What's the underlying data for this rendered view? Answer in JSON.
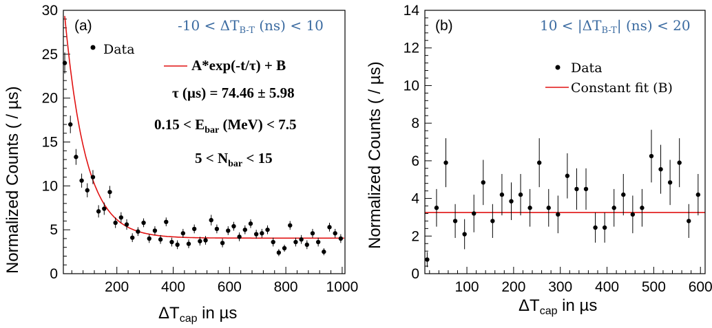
{
  "colors": {
    "fit": "#e01010",
    "condition": "#3a6aa0",
    "data": "#000000"
  },
  "chart_data": [
    {
      "type": "scatter",
      "panel_label": "(a)",
      "condition_prefix": "-10 < ΔT",
      "condition_sub": "B-T",
      "condition_suffix": " (ns) < 10",
      "ylabel": "Normalized Counts ( / µs)",
      "xlabel_main": "ΔT",
      "xlabel_sub": "cap",
      "xlabel_suffix": " in µs",
      "xlim": [
        10,
        1010
      ],
      "ylim": [
        0,
        30
      ],
      "xticks": [
        200,
        400,
        600,
        800,
        1000
      ],
      "yticks": [
        0,
        5,
        10,
        15,
        20,
        25,
        30
      ],
      "legend_data": "Data",
      "legend_fit": "A*exp(-t/τ) + B",
      "fit_result": "τ (µs) = 74.46  ± 5.98",
      "energy_prefix": "0.15 < E",
      "energy_sub": "bar",
      "energy_suffix": " (MeV) < 7.5",
      "nbar_prefix": "5 < N",
      "nbar_sub": "bar",
      "nbar_suffix": " < 15",
      "fit": {
        "A": 25.3,
        "tau": 74.46,
        "B": 4.05,
        "x_start": 15
      },
      "points": [
        {
          "x": 15,
          "y": 24.0,
          "e": 1.2
        },
        {
          "x": 35,
          "y": 17.0,
          "e": 1.0
        },
        {
          "x": 55,
          "y": 13.3,
          "e": 0.9
        },
        {
          "x": 75,
          "y": 10.6,
          "e": 0.8
        },
        {
          "x": 95,
          "y": 9.5,
          "e": 0.8
        },
        {
          "x": 115,
          "y": 11.0,
          "e": 0.8
        },
        {
          "x": 135,
          "y": 7.1,
          "e": 0.7
        },
        {
          "x": 155,
          "y": 7.4,
          "e": 0.7
        },
        {
          "x": 175,
          "y": 9.3,
          "e": 0.7
        },
        {
          "x": 195,
          "y": 5.8,
          "e": 0.6
        },
        {
          "x": 215,
          "y": 6.4,
          "e": 0.6
        },
        {
          "x": 235,
          "y": 5.6,
          "e": 0.6
        },
        {
          "x": 255,
          "y": 4.1,
          "e": 0.5
        },
        {
          "x": 275,
          "y": 4.8,
          "e": 0.5
        },
        {
          "x": 295,
          "y": 5.8,
          "e": 0.5
        },
        {
          "x": 315,
          "y": 4.0,
          "e": 0.5
        },
        {
          "x": 335,
          "y": 4.9,
          "e": 0.5
        },
        {
          "x": 355,
          "y": 3.9,
          "e": 0.5
        },
        {
          "x": 375,
          "y": 5.9,
          "e": 0.5
        },
        {
          "x": 395,
          "y": 3.6,
          "e": 0.5
        },
        {
          "x": 415,
          "y": 3.3,
          "e": 0.5
        },
        {
          "x": 435,
          "y": 4.6,
          "e": 0.5
        },
        {
          "x": 455,
          "y": 3.4,
          "e": 0.5
        },
        {
          "x": 475,
          "y": 5.1,
          "e": 0.5
        },
        {
          "x": 495,
          "y": 3.7,
          "e": 0.5
        },
        {
          "x": 515,
          "y": 3.8,
          "e": 0.5
        },
        {
          "x": 535,
          "y": 6.1,
          "e": 0.6
        },
        {
          "x": 555,
          "y": 5.1,
          "e": 0.5
        },
        {
          "x": 575,
          "y": 3.5,
          "e": 0.5
        },
        {
          "x": 595,
          "y": 4.9,
          "e": 0.5
        },
        {
          "x": 615,
          "y": 5.4,
          "e": 0.5
        },
        {
          "x": 635,
          "y": 4.2,
          "e": 0.5
        },
        {
          "x": 655,
          "y": 5.0,
          "e": 0.5
        },
        {
          "x": 675,
          "y": 5.7,
          "e": 0.5
        },
        {
          "x": 695,
          "y": 4.5,
          "e": 0.5
        },
        {
          "x": 715,
          "y": 4.6,
          "e": 0.5
        },
        {
          "x": 735,
          "y": 5.0,
          "e": 0.5
        },
        {
          "x": 755,
          "y": 3.6,
          "e": 0.5
        },
        {
          "x": 775,
          "y": 2.4,
          "e": 0.4
        },
        {
          "x": 795,
          "y": 2.9,
          "e": 0.4
        },
        {
          "x": 815,
          "y": 5.5,
          "e": 0.5
        },
        {
          "x": 835,
          "y": 3.6,
          "e": 0.5
        },
        {
          "x": 855,
          "y": 3.9,
          "e": 0.5
        },
        {
          "x": 875,
          "y": 3.3,
          "e": 0.5
        },
        {
          "x": 895,
          "y": 4.6,
          "e": 0.5
        },
        {
          "x": 915,
          "y": 3.6,
          "e": 0.5
        },
        {
          "x": 935,
          "y": 2.5,
          "e": 0.4
        },
        {
          "x": 955,
          "y": 5.3,
          "e": 0.5
        },
        {
          "x": 975,
          "y": 4.6,
          "e": 0.5
        },
        {
          "x": 995,
          "y": 4.0,
          "e": 0.5
        }
      ]
    },
    {
      "type": "scatter",
      "panel_label": "(b)",
      "condition_prefix": "10 < |ΔT",
      "condition_sub": "B-T",
      "condition_suffix": "| (ns) < 20",
      "ylabel": "Normalized Counts ( / µs)",
      "xlabel_main": "ΔT",
      "xlabel_sub": "cap",
      "xlabel_suffix": " in µs",
      "xlim": [
        10,
        610
      ],
      "ylim": [
        0,
        14
      ],
      "xticks": [
        100,
        200,
        300,
        400,
        500,
        600
      ],
      "yticks": [
        0,
        2,
        4,
        6,
        8,
        10,
        12,
        14
      ],
      "legend_data": "Data",
      "legend_fit": "Constant fit (B)",
      "fit": {
        "B": 3.25
      },
      "points": [
        {
          "x": 15,
          "y": 0.75,
          "e": 0.4
        },
        {
          "x": 35,
          "y": 3.5,
          "e": 1.0
        },
        {
          "x": 55,
          "y": 5.9,
          "e": 1.3
        },
        {
          "x": 75,
          "y": 2.8,
          "e": 0.9
        },
        {
          "x": 95,
          "y": 2.1,
          "e": 0.8
        },
        {
          "x": 115,
          "y": 3.2,
          "e": 1.0
        },
        {
          "x": 135,
          "y": 4.85,
          "e": 1.2
        },
        {
          "x": 155,
          "y": 2.8,
          "e": 0.9
        },
        {
          "x": 175,
          "y": 4.2,
          "e": 1.1
        },
        {
          "x": 195,
          "y": 3.85,
          "e": 1.0
        },
        {
          "x": 215,
          "y": 4.2,
          "e": 1.1
        },
        {
          "x": 235,
          "y": 3.5,
          "e": 1.0
        },
        {
          "x": 255,
          "y": 5.9,
          "e": 1.3
        },
        {
          "x": 275,
          "y": 3.5,
          "e": 1.0
        },
        {
          "x": 295,
          "y": 3.15,
          "e": 1.0
        },
        {
          "x": 315,
          "y": 5.2,
          "e": 1.2
        },
        {
          "x": 335,
          "y": 4.5,
          "e": 1.1
        },
        {
          "x": 355,
          "y": 4.5,
          "e": 1.1
        },
        {
          "x": 375,
          "y": 2.45,
          "e": 0.8
        },
        {
          "x": 395,
          "y": 2.45,
          "e": 0.8
        },
        {
          "x": 415,
          "y": 3.5,
          "e": 1.0
        },
        {
          "x": 435,
          "y": 4.2,
          "e": 1.1
        },
        {
          "x": 455,
          "y": 3.15,
          "e": 1.0
        },
        {
          "x": 475,
          "y": 3.5,
          "e": 1.0
        },
        {
          "x": 495,
          "y": 6.25,
          "e": 1.4
        },
        {
          "x": 515,
          "y": 5.55,
          "e": 1.3
        },
        {
          "x": 535,
          "y": 4.85,
          "e": 1.2
        },
        {
          "x": 555,
          "y": 5.9,
          "e": 1.3
        },
        {
          "x": 575,
          "y": 2.8,
          "e": 0.9
        },
        {
          "x": 595,
          "y": 4.2,
          "e": 1.1
        }
      ]
    }
  ]
}
